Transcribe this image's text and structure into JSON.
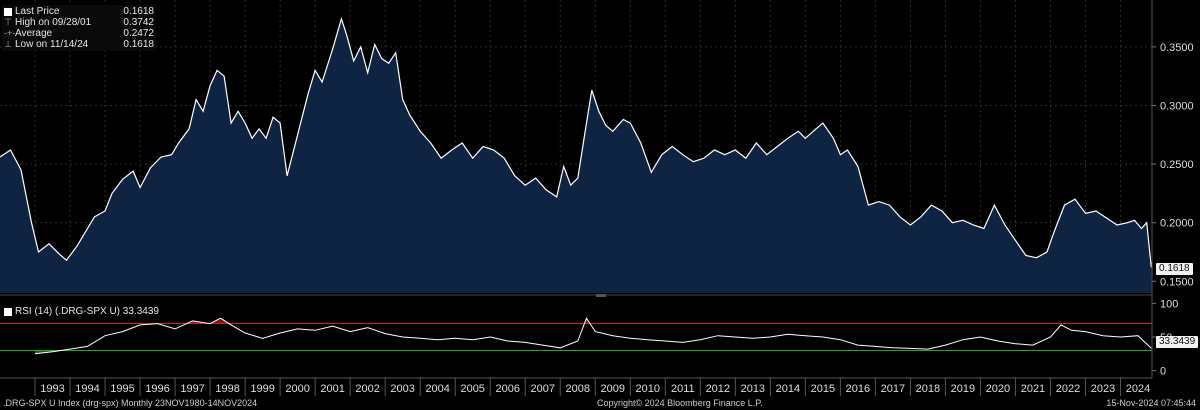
{
  "legend": {
    "last_price_label": "Last Price",
    "last_price_value": "0.1618",
    "high_label": "High on 09/28/01",
    "high_value": "0.3742",
    "average_label": "Average",
    "average_value": "0.2472",
    "low_label": "Low on 11/14/24",
    "low_value": "0.1618"
  },
  "rsi_legend": "RSI (14) (.DRG-SPX U) 33.3439",
  "last_price_tag": "0.1618",
  "rsi_tag": "33.3439",
  "footer": {
    "left": ".DRG-SPX U Index (drg-spx)  Monthly 23NOV1980-14NOV2024",
    "center": "Copyright© 2024 Bloomberg Finance L.P.",
    "right": "15-Nov-2024 07:45:44"
  },
  "colors": {
    "line": "#ffffff",
    "fill": "#0e2442",
    "grid": "#2e2e2e",
    "rsi_over": "#cc2222",
    "rsi_under": "#22aa22"
  },
  "chart_data": [
    {
      "type": "area",
      "title": "",
      "ylim": [
        0.14,
        0.39
      ],
      "yticks": [
        "0.1500",
        "0.2000",
        "0.2500",
        "0.3000",
        "0.3500"
      ],
      "ytick_values": [
        0.15,
        0.2,
        0.25,
        0.3,
        0.35
      ],
      "x_ticks": [
        "1993",
        "1994",
        "1995",
        "1996",
        "1997",
        "1998",
        "1999",
        "2000",
        "2001",
        "2002",
        "2003",
        "2004",
        "2005",
        "2006",
        "2007",
        "2008",
        "2009",
        "2010",
        "2011",
        "2012",
        "2013",
        "2014",
        "2015",
        "2016",
        "2017",
        "2018",
        "2019",
        "2020",
        "2021",
        "2022",
        "2023",
        "2024"
      ],
      "xlim": [
        1992.0,
        2024.9
      ],
      "series": [
        {
          "x": [
            1992.0,
            1992.3,
            1992.6,
            1992.9,
            1993.1,
            1993.4,
            1993.7,
            1993.9,
            1994.2,
            1994.5,
            1994.7,
            1995.0,
            1995.2,
            1995.5,
            1995.8,
            1996.0,
            1996.3,
            1996.6,
            1996.9,
            1997.1,
            1997.4,
            1997.6,
            1997.8,
            1998.0,
            1998.2,
            1998.4,
            1998.6,
            1998.8,
            1999.0,
            1999.2,
            1999.4,
            1999.6,
            1999.8,
            2000.0,
            2000.2,
            2000.5,
            2000.8,
            2001.0,
            2001.2,
            2001.5,
            2001.75,
            2001.9,
            2002.1,
            2002.3,
            2002.5,
            2002.7,
            2002.9,
            2003.1,
            2003.3,
            2003.5,
            2003.7,
            2004.0,
            2004.3,
            2004.6,
            2004.9,
            2005.2,
            2005.5,
            2005.8,
            2006.1,
            2006.4,
            2006.7,
            2007.0,
            2007.3,
            2007.6,
            2007.9,
            2008.1,
            2008.3,
            2008.5,
            2008.7,
            2008.9,
            2009.1,
            2009.3,
            2009.5,
            2009.8,
            2010.0,
            2010.3,
            2010.6,
            2010.9,
            2011.2,
            2011.5,
            2011.8,
            2012.1,
            2012.4,
            2012.7,
            2013.0,
            2013.3,
            2013.6,
            2013.9,
            2014.2,
            2014.5,
            2014.8,
            2015.0,
            2015.3,
            2015.5,
            2015.8,
            2016.0,
            2016.2,
            2016.5,
            2016.8,
            2017.1,
            2017.4,
            2017.7,
            2018.0,
            2018.3,
            2018.6,
            2018.9,
            2019.2,
            2019.5,
            2019.8,
            2020.1,
            2020.4,
            2020.7,
            2021.0,
            2021.3,
            2021.6,
            2021.9,
            2022.1,
            2022.4,
            2022.7,
            2023.0,
            2023.3,
            2023.6,
            2023.9,
            2024.2,
            2024.4,
            2024.6,
            2024.75,
            2024.88
          ],
          "values": [
            0.256,
            0.262,
            0.245,
            0.2,
            0.175,
            0.182,
            0.173,
            0.168,
            0.18,
            0.195,
            0.205,
            0.21,
            0.225,
            0.237,
            0.244,
            0.23,
            0.247,
            0.256,
            0.258,
            0.268,
            0.28,
            0.305,
            0.295,
            0.317,
            0.33,
            0.325,
            0.285,
            0.295,
            0.285,
            0.272,
            0.28,
            0.272,
            0.29,
            0.285,
            0.24,
            0.275,
            0.31,
            0.33,
            0.32,
            0.348,
            0.374,
            0.36,
            0.338,
            0.35,
            0.328,
            0.352,
            0.34,
            0.336,
            0.345,
            0.305,
            0.292,
            0.278,
            0.268,
            0.255,
            0.262,
            0.268,
            0.255,
            0.265,
            0.262,
            0.255,
            0.24,
            0.232,
            0.238,
            0.228,
            0.222,
            0.248,
            0.232,
            0.238,
            0.276,
            0.313,
            0.295,
            0.283,
            0.278,
            0.288,
            0.285,
            0.268,
            0.243,
            0.258,
            0.265,
            0.258,
            0.252,
            0.255,
            0.262,
            0.258,
            0.262,
            0.255,
            0.268,
            0.258,
            0.265,
            0.272,
            0.278,
            0.272,
            0.28,
            0.285,
            0.272,
            0.258,
            0.262,
            0.248,
            0.215,
            0.218,
            0.215,
            0.205,
            0.198,
            0.205,
            0.215,
            0.21,
            0.2,
            0.202,
            0.198,
            0.195,
            0.215,
            0.198,
            0.185,
            0.172,
            0.17,
            0.175,
            0.192,
            0.215,
            0.22,
            0.208,
            0.21,
            0.204,
            0.198,
            0.2,
            0.202,
            0.195,
            0.2,
            0.1618
          ],
          "style": "Last Price"
        }
      ]
    },
    {
      "type": "line",
      "title": "RSI (14) (.DRG-SPX U)",
      "ylim": [
        -8,
        108
      ],
      "yticks": [
        "0",
        "50",
        "100"
      ],
      "ytick_values": [
        0,
        50,
        100
      ],
      "ref_lines": [
        70,
        30
      ],
      "xlim": [
        1992.0,
        2024.9
      ],
      "series": [
        {
          "x": [
            1993.0,
            1993.5,
            1994.0,
            1994.5,
            1995.0,
            1995.5,
            1996.0,
            1996.5,
            1997.0,
            1997.5,
            1998.0,
            1998.3,
            1998.6,
            1999.0,
            1999.5,
            2000.0,
            2000.5,
            2001.0,
            2001.5,
            2002.0,
            2002.5,
            2003.0,
            2003.5,
            2004.0,
            2004.5,
            2005.0,
            2005.5,
            2006.0,
            2006.5,
            2007.0,
            2007.5,
            2008.0,
            2008.5,
            2008.75,
            2009.0,
            2009.5,
            2010.0,
            2010.5,
            2011.0,
            2011.5,
            2012.0,
            2012.5,
            2013.0,
            2013.5,
            2014.0,
            2014.5,
            2015.0,
            2015.5,
            2016.0,
            2016.5,
            2017.0,
            2017.5,
            2018.0,
            2018.5,
            2019.0,
            2019.5,
            2020.0,
            2020.5,
            2021.0,
            2021.5,
            2022.0,
            2022.3,
            2022.6,
            2023.0,
            2023.5,
            2024.0,
            2024.5,
            2024.88
          ],
          "values": [
            25,
            28,
            32,
            36,
            52,
            58,
            68,
            70,
            62,
            74,
            70,
            78,
            68,
            56,
            48,
            56,
            62,
            60,
            66,
            58,
            64,
            55,
            50,
            48,
            46,
            48,
            46,
            50,
            44,
            42,
            38,
            34,
            44,
            78,
            58,
            52,
            48,
            46,
            44,
            42,
            46,
            52,
            50,
            48,
            50,
            54,
            52,
            50,
            46,
            38,
            36,
            34,
            33,
            32,
            38,
            46,
            50,
            44,
            40,
            38,
            50,
            68,
            60,
            58,
            52,
            50,
            52,
            33.3439
          ]
        }
      ]
    }
  ]
}
